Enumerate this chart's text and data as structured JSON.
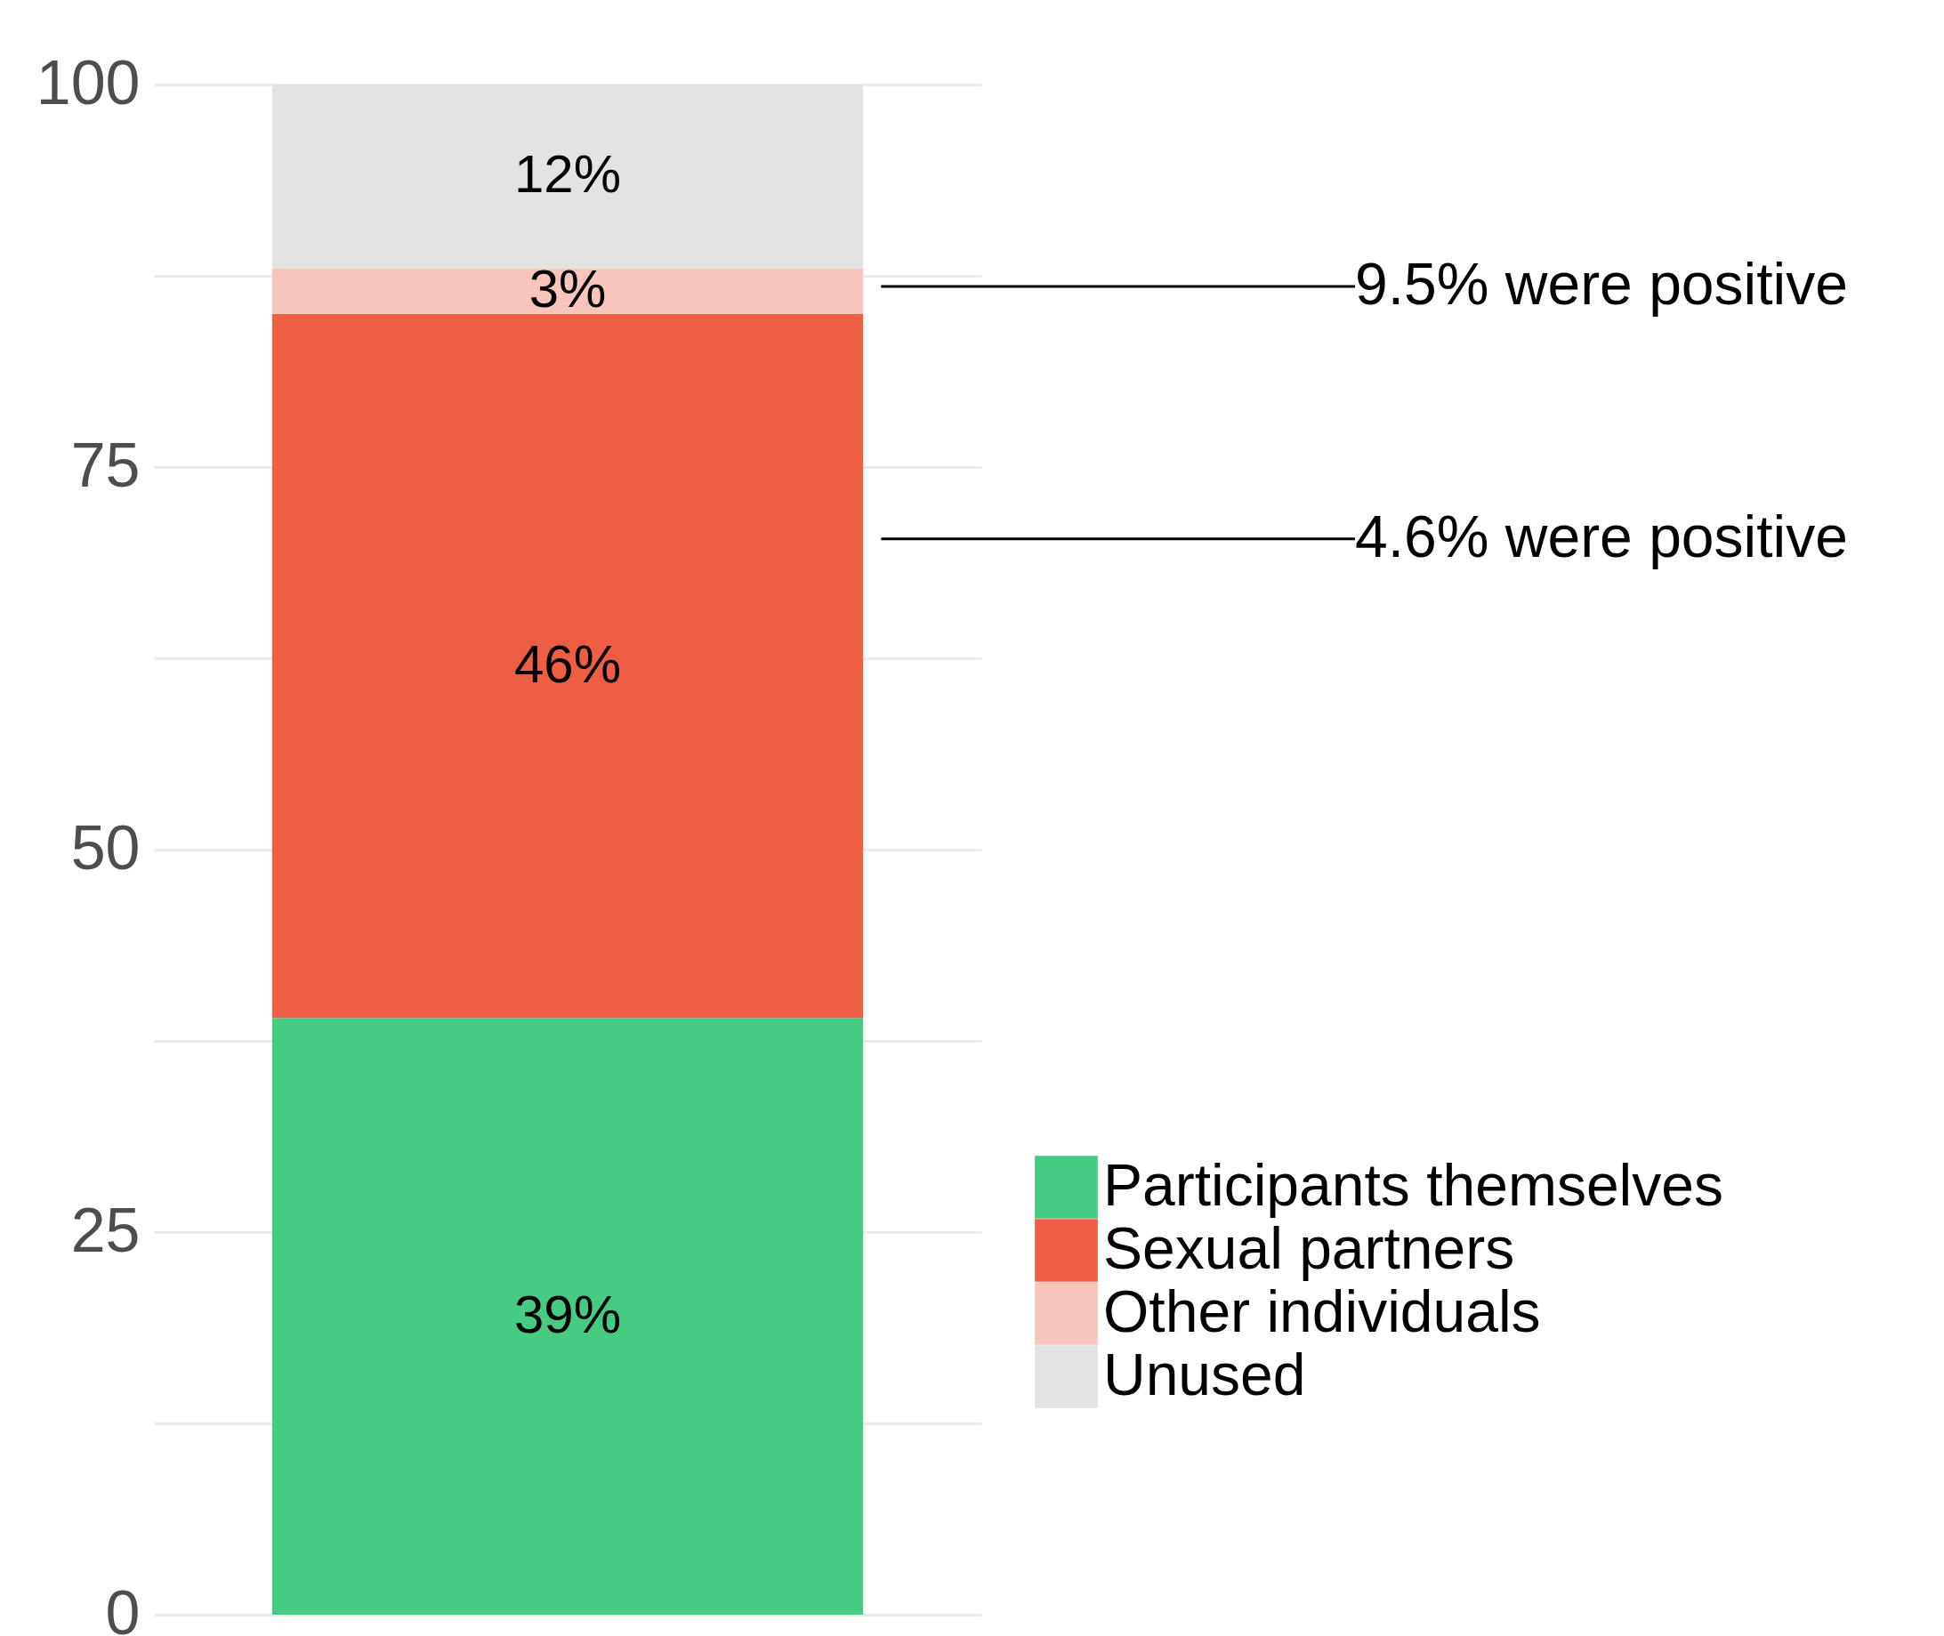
{
  "chart_data": {
    "type": "bar",
    "stacked": true,
    "categories": [
      null
    ],
    "series": [
      {
        "name": "Participants themselves",
        "color": "#45cc82",
        "values": [
          39
        ],
        "value_labels": [
          "39%"
        ]
      },
      {
        "name": "Sexual partners",
        "color": "#ed5e44",
        "values": [
          46
        ],
        "value_labels": [
          "46%"
        ]
      },
      {
        "name": "Other individuals",
        "color": "#f8c5bd",
        "values": [
          3
        ],
        "value_labels": [
          "3%"
        ]
      },
      {
        "name": "Unused",
        "color": "#e3e3e3",
        "values": [
          12
        ],
        "value_labels": [
          "12%"
        ]
      }
    ],
    "ylim": [
      0,
      100
    ],
    "yticks": [
      0,
      {
        "value": 12.5,
        "label": null
      },
      25,
      {
        "value": 37.5,
        "label": null
      },
      50,
      {
        "value": 62.5,
        "label": null
      },
      75,
      {
        "value": 87.5,
        "label": null
      },
      100
    ],
    "grid": true,
    "legend": "right",
    "tick_labels": "y",
    "annotations": [
      "9.5% were positive",
      "4.6% were positive"
    ]
  }
}
